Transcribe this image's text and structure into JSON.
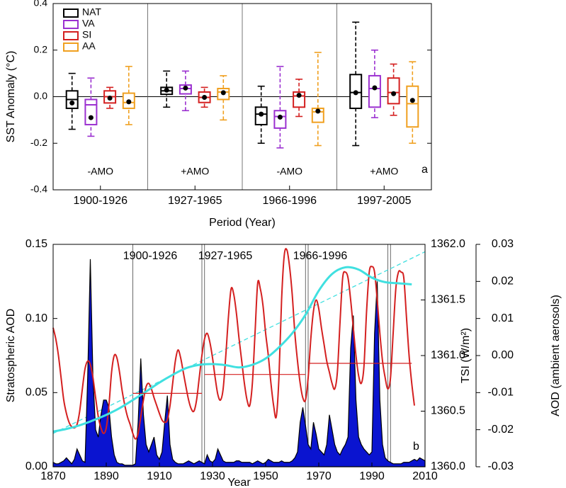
{
  "chart_data": [
    {
      "type": "box",
      "ylabel": "SST Anomaly (°C)",
      "xlabel": "Period (Year)",
      "categories": [
        "1900-1926",
        "1927-1965",
        "1966-1996",
        "1997-2005"
      ],
      "ylim": [
        -0.4,
        0.4
      ],
      "yticks": [
        -0.4,
        -0.2,
        {
          "value": 0,
          "label": "0.0"
        },
        0.2,
        0.4
      ],
      "zero_line": true,
      "legend": "upper left",
      "series": [
        {
          "name": "NAT",
          "color": "#000000",
          "whislo": [
            -0.14,
            -0.045,
            -0.2,
            -0.21
          ],
          "q1": [
            -0.05,
            0.01,
            -0.12,
            -0.05
          ],
          "med": [
            -0.012,
            0.025,
            -0.075,
            0.018
          ],
          "q3": [
            0.025,
            0.04,
            -0.045,
            0.095
          ],
          "whishi": [
            0.1,
            0.11,
            0.045,
            0.32
          ],
          "mean": [
            -0.027,
            0.028,
            -0.075,
            0.017
          ]
        },
        {
          "name": "VA",
          "color": "#9b30d0",
          "whislo": [
            -0.17,
            -0.06,
            -0.22,
            -0.09
          ],
          "q1": [
            -0.12,
            0.012,
            -0.135,
            -0.045
          ],
          "med": [
            -0.035,
            0.035,
            -0.085,
            0.035
          ],
          "q3": [
            -0.012,
            0.05,
            -0.06,
            0.09
          ],
          "whishi": [
            0.08,
            0.11,
            0.13,
            0.2
          ],
          "mean": [
            -0.09,
            0.037,
            -0.088,
            0.038
          ]
        },
        {
          "name": "SI",
          "color": "#d42020",
          "whislo": [
            -0.05,
            -0.045,
            -0.085,
            -0.08
          ],
          "q1": [
            -0.027,
            -0.025,
            -0.045,
            -0.03
          ],
          "med": [
            0,
            -0.003,
            0.003,
            0.018
          ],
          "q3": [
            0.025,
            0.02,
            0.02,
            0.08
          ],
          "whishi": [
            0.04,
            0.04,
            0.075,
            0.14
          ],
          "mean": [
            -0.006,
            -0.003,
            0.006,
            0.013
          ]
        },
        {
          "name": "AA",
          "color": "#f0a020",
          "whislo": [
            -0.12,
            -0.1,
            -0.21,
            -0.2
          ],
          "q1": [
            -0.05,
            -0.012,
            -0.11,
            -0.13
          ],
          "med": [
            -0.025,
            0.02,
            -0.065,
            -0.03
          ],
          "q3": [
            0.015,
            0.035,
            -0.05,
            0.045
          ],
          "whishi": [
            0.13,
            0.09,
            0.19,
            0.15
          ],
          "mean": [
            -0.022,
            0.017,
            -0.062,
            -0.016
          ]
        }
      ],
      "annotations": [
        {
          "text": "-AMO",
          "color": "#2a6090"
        },
        {
          "text": "+AMO",
          "color": "#c8201e"
        },
        {
          "text": "-AMO",
          "color": "#2a6090"
        },
        {
          "text": "+AMO",
          "color": "#c8201e"
        }
      ],
      "panel_label": "a"
    },
    {
      "type": "line",
      "xlabel": "Year",
      "xlim": [
        1870,
        2010
      ],
      "xticks": [
        1870,
        1890,
        1910,
        1930,
        1950,
        1970,
        1990,
        2010
      ],
      "ylim": [
        0,
        0.15
      ],
      "yticks": [
        {
          "value": 0,
          "label": "0.00"
        },
        0.05,
        {
          "value": 0.1,
          "label": "0.10"
        },
        0.15
      ],
      "ylabel": "Stratospheric AOD",
      "y2lim": [
        1360,
        1362
      ],
      "y2ticks": [
        {
          "value": 1360,
          "label": "1360.0"
        },
        1360.5,
        {
          "value": 1361,
          "label": "1361.0"
        },
        1361.5,
        {
          "value": 1362,
          "label": "1362.0"
        }
      ],
      "y2label": "TSI (W/m²)",
      "y3lim": [
        -0.03,
        0.03
      ],
      "y3ticks": [
        -0.03,
        -0.02,
        -0.01,
        {
          "value": 0,
          "label": "0.00"
        },
        0.01,
        0.02,
        0.03
      ],
      "y3label": "AOD (ambient aerosols)",
      "series": [
        {
          "kind": "area",
          "color": "#0a14d0",
          "x": [
            1870,
            1871,
            1872,
            1873,
            1874,
            1875,
            1876,
            1877,
            1878,
            1879,
            1880,
            1881,
            1882,
            1883,
            1884,
            1885,
            1886,
            1887,
            1888,
            1889,
            1890,
            1891,
            1892,
            1893,
            1894,
            1895,
            1896,
            1897,
            1898,
            1899,
            1900,
            1901,
            1902,
            1903,
            1904,
            1905,
            1906,
            1907,
            1908,
            1909,
            1910,
            1911,
            1912,
            1913,
            1914,
            1915,
            1916,
            1917,
            1918,
            1919,
            1920,
            1921,
            1922,
            1923,
            1924,
            1925,
            1926,
            1927,
            1928,
            1929,
            1930,
            1931,
            1932,
            1933,
            1934,
            1935,
            1936,
            1937,
            1938,
            1939,
            1940,
            1941,
            1942,
            1943,
            1944,
            1945,
            1946,
            1947,
            1948,
            1949,
            1950,
            1951,
            1952,
            1953,
            1954,
            1955,
            1956,
            1957,
            1958,
            1959,
            1960,
            1961,
            1962,
            1963,
            1964,
            1965,
            1966,
            1967,
            1968,
            1969,
            1970,
            1971,
            1972,
            1973,
            1974,
            1975,
            1976,
            1977,
            1978,
            1979,
            1980,
            1981,
            1982,
            1983,
            1984,
            1985,
            1986,
            1987,
            1988,
            1989,
            1990,
            1991,
            1992,
            1993,
            1994,
            1995,
            1996,
            1997,
            1998,
            1999,
            2000,
            2001,
            2002,
            2003,
            2004,
            2005,
            2006,
            2007,
            2008,
            2009,
            2010
          ],
          "values": [
            0.003,
            0.002,
            0.002,
            0.003,
            0.004,
            0.006,
            0.004,
            0.002,
            0.005,
            0.012,
            0.008,
            0.004,
            0.003,
            0.06,
            0.14,
            0.06,
            0.025,
            0.02,
            0.035,
            0.045,
            0.045,
            0.04,
            0.02,
            0.008,
            0.003,
            0.002,
            0.002,
            0.001,
            0.001,
            0.001,
            0.001,
            0.002,
            0.03,
            0.073,
            0.035,
            0.015,
            0.01,
            0.015,
            0.02,
            0.008,
            0.005,
            0.01,
            0.03,
            0.048,
            0.015,
            0.005,
            0.003,
            0.002,
            0.002,
            0.002,
            0.003,
            0.004,
            0.003,
            0.002,
            0.003,
            0.004,
            0.003,
            0.002,
            0.008,
            0.004,
            0.003,
            0.005,
            0.012,
            0.008,
            0.004,
            0.003,
            0.003,
            0.003,
            0.003,
            0.004,
            0.004,
            0.003,
            0.003,
            0.003,
            0.003,
            0.002,
            0.003,
            0.004,
            0.003,
            0.002,
            0.003,
            0.005,
            0.004,
            0.003,
            0.003,
            0.003,
            0.004,
            0.003,
            0.003,
            0.003,
            0.004,
            0.006,
            0.01,
            0.03,
            0.04,
            0.028,
            0.015,
            0.012,
            0.03,
            0.022,
            0.012,
            0.01,
            0.008,
            0.015,
            0.035,
            0.025,
            0.015,
            0.01,
            0.008,
            0.012,
            0.015,
            0.02,
            0.08,
            0.102,
            0.045,
            0.02,
            0.015,
            0.012,
            0.01,
            0.008,
            0.01,
            0.09,
            0.125,
            0.045,
            0.015,
            0.006,
            0.004,
            0.003,
            0.002,
            0.002,
            0.002,
            0.002,
            0.003,
            0.003,
            0.003,
            0.004,
            0.005,
            0.004,
            0.006,
            0.005,
            0.004
          ]
        },
        {
          "kind": "line",
          "axis": "y2",
          "color": "#d42020",
          "x": [
            1870,
            1871,
            1872,
            1873,
            1874,
            1875,
            1876,
            1877,
            1878,
            1879,
            1880,
            1881,
            1882,
            1883,
            1884,
            1885,
            1886,
            1887,
            1888,
            1889,
            1890,
            1891,
            1892,
            1893,
            1894,
            1895,
            1896,
            1897,
            1898,
            1899,
            1900,
            1901,
            1902,
            1903,
            1904,
            1905,
            1906,
            1907,
            1908,
            1909,
            1910,
            1911,
            1912,
            1913,
            1914,
            1915,
            1916,
            1917,
            1918,
            1919,
            1920,
            1921,
            1922,
            1923,
            1924,
            1925,
            1926,
            1927,
            1928,
            1929,
            1930,
            1931,
            1932,
            1933,
            1934,
            1935,
            1936,
            1937,
            1938,
            1939,
            1940,
            1941,
            1942,
            1943,
            1944,
            1945,
            1946,
            1947,
            1948,
            1949,
            1950,
            1951,
            1952,
            1953,
            1954,
            1955,
            1956,
            1957,
            1958,
            1959,
            1960,
            1961,
            1962,
            1963,
            1964,
            1965,
            1966,
            1967,
            1968,
            1969,
            1970,
            1971,
            1972,
            1973,
            1974,
            1975,
            1976,
            1977,
            1978,
            1979,
            1980,
            1981,
            1982,
            1983,
            1984,
            1985,
            1986,
            1987,
            1988,
            1989,
            1990,
            1991,
            1992,
            1993,
            1994,
            1995,
            1996,
            1997,
            1998,
            1999,
            2000,
            2001,
            2002,
            2003,
            2004,
            2005,
            2006
          ],
          "values": [
            1361.25,
            1361.15,
            1361.0,
            1360.8,
            1360.6,
            1360.48,
            1360.4,
            1360.36,
            1360.35,
            1360.38,
            1360.5,
            1360.7,
            1360.88,
            1360.95,
            1360.92,
            1360.8,
            1360.62,
            1360.45,
            1360.35,
            1360.3,
            1360.35,
            1360.55,
            1360.85,
            1361.0,
            1360.98,
            1360.85,
            1360.68,
            1360.55,
            1360.45,
            1360.38,
            1360.3,
            1360.25,
            1360.3,
            1360.45,
            1360.6,
            1360.72,
            1360.75,
            1360.7,
            1360.62,
            1360.55,
            1360.48,
            1360.42,
            1360.4,
            1360.42,
            1360.55,
            1360.75,
            1360.95,
            1361.05,
            1360.98,
            1360.85,
            1360.72,
            1360.6,
            1360.52,
            1360.5,
            1360.6,
            1360.8,
            1361.0,
            1361.15,
            1361.2,
            1361.12,
            1360.98,
            1360.8,
            1360.65,
            1360.6,
            1360.7,
            1361.0,
            1361.35,
            1361.6,
            1361.55,
            1361.38,
            1361.15,
            1360.95,
            1360.75,
            1360.6,
            1360.55,
            1360.75,
            1361.2,
            1361.65,
            1361.6,
            1361.45,
            1361.2,
            1361.0,
            1360.75,
            1360.55,
            1360.45,
            1360.8,
            1361.5,
            1361.9,
            1361.95,
            1361.8,
            1361.55,
            1361.2,
            1360.95,
            1360.75,
            1360.62,
            1360.6,
            1360.8,
            1361.15,
            1361.4,
            1361.5,
            1361.42,
            1361.25,
            1361.1,
            1360.95,
            1360.85,
            1360.75,
            1360.7,
            1360.85,
            1361.3,
            1361.7,
            1361.75,
            1361.7,
            1361.5,
            1361.25,
            1361.0,
            1360.82,
            1360.75,
            1360.9,
            1361.4,
            1361.75,
            1361.8,
            1361.75,
            1361.5,
            1361.2,
            1360.95,
            1360.8,
            1360.7,
            1360.8,
            1361.2,
            1361.6,
            1361.75,
            1361.75,
            1361.7,
            1361.35,
            1361.0,
            1360.75,
            1360.55
          ]
        },
        {
          "kind": "line",
          "axis": "y3",
          "color": "#40e0e0",
          "x": [
            1870,
            1875,
            1880,
            1885,
            1890,
            1895,
            1900,
            1905,
            1910,
            1915,
            1920,
            1925,
            1930,
            1935,
            1940,
            1945,
            1950,
            1955,
            1960,
            1965,
            1970,
            1975,
            1980,
            1985,
            1990,
            1995,
            2000,
            2005
          ],
          "values": [
            -0.0205,
            -0.0198,
            -0.0188,
            -0.0175,
            -0.016,
            -0.0142,
            -0.012,
            -0.0097,
            -0.0073,
            -0.0052,
            -0.0034,
            -0.0025,
            -0.0023,
            -0.0026,
            -0.0032,
            -0.0025,
            -0.0008,
            0.0022,
            0.006,
            0.011,
            0.0175,
            0.022,
            0.0238,
            0.0232,
            0.021,
            0.0198,
            0.0195,
            0.0192
          ]
        }
      ],
      "trend": {
        "axis": "y3",
        "color": "#40e0e0",
        "dashed": true,
        "x": [
          1870,
          2010
        ],
        "values": [
          -0.021,
          0.028
        ]
      },
      "period_means": {
        "axis": "y2",
        "color": "#d42020",
        "x0": [
          1900,
          1927,
          1966
        ],
        "x1": [
          1926,
          1965,
          2005
        ],
        "values": [
          1360.66,
          1360.83,
          1360.93
        ]
      },
      "dividers": [
        1900,
        1926,
        1927,
        1965,
        1966,
        1996,
        1997
      ],
      "period_labels": [
        {
          "text": "1900-1926",
          "color": "#1f4e8c"
        },
        {
          "text": "1927-1965",
          "color": "#c8201e"
        },
        {
          "text": "1966-1996",
          "color": "#1d5a7a"
        }
      ],
      "panel_label": "b"
    }
  ]
}
